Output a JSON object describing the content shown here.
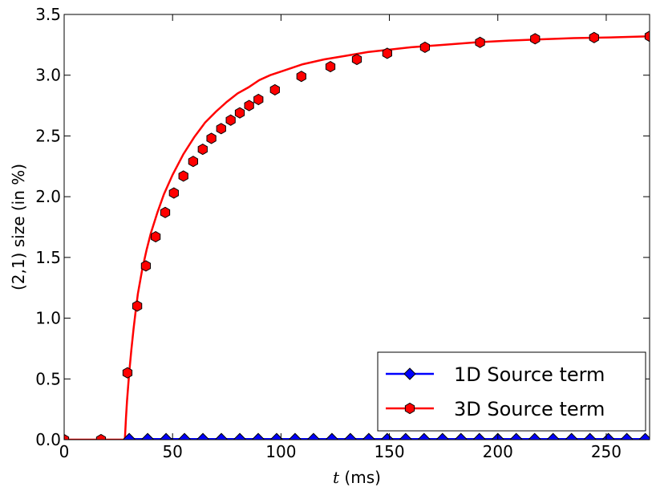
{
  "chart_data": {
    "type": "line",
    "title": "",
    "xlabel_var": "t",
    "xlabel_unit": " (ms)",
    "ylabel": "(2,1) size (in %)",
    "xlim": [
      0,
      270
    ],
    "ylim": [
      0.0,
      3.5
    ],
    "xticks": [
      0,
      50,
      100,
      150,
      200,
      250
    ],
    "xtick_labels": [
      "0",
      "50",
      "100",
      "150",
      "200",
      "250"
    ],
    "yticks": [
      0.0,
      0.5,
      1.0,
      1.5,
      2.0,
      2.5,
      3.0,
      3.5
    ],
    "ytick_labels": [
      "0.0",
      "0.5",
      "1.0",
      "1.5",
      "2.0",
      "2.5",
      "3.0",
      "3.5"
    ],
    "grid": false,
    "legend_position": "bottom-right",
    "series": [
      {
        "name": "1D Source term",
        "color": "#0000ff",
        "marker": "diamond",
        "x": [
          30,
          38.5,
          47,
          55.5,
          64,
          72.5,
          81,
          89.5,
          98,
          106.5,
          115,
          123.5,
          132,
          140.5,
          149,
          157.5,
          166,
          174.5,
          183,
          191.5,
          200,
          208.5,
          217,
          225.5,
          234,
          242.5,
          251,
          259.5,
          268
        ],
        "y": [
          0.005,
          0.005,
          0.005,
          0.005,
          0.005,
          0.005,
          0.005,
          0.005,
          0.005,
          0.005,
          0.005,
          0.005,
          0.005,
          0.005,
          0.005,
          0.005,
          0.005,
          0.005,
          0.005,
          0.005,
          0.005,
          0.005,
          0.005,
          0.005,
          0.005,
          0.005,
          0.005,
          0.005,
          0.005
        ]
      },
      {
        "name": "3D Source term",
        "color": "#ff0000",
        "marker": "hexagon",
        "line_x": [
          0,
          28,
          28.5,
          29,
          30,
          31,
          32,
          33,
          34,
          36,
          38,
          40,
          43,
          46,
          50,
          55,
          60,
          65,
          70,
          75,
          80,
          85,
          90,
          95,
          100,
          110,
          120,
          130,
          140,
          150,
          160,
          175,
          190,
          205,
          220,
          235,
          250,
          270
        ],
        "line_y": [
          0,
          0,
          0.18,
          0.32,
          0.55,
          0.74,
          0.91,
          1.06,
          1.2,
          1.4,
          1.56,
          1.7,
          1.87,
          2.02,
          2.18,
          2.35,
          2.49,
          2.61,
          2.7,
          2.78,
          2.85,
          2.9,
          2.96,
          3.0,
          3.03,
          3.09,
          3.13,
          3.16,
          3.19,
          3.21,
          3.23,
          3.25,
          3.27,
          3.285,
          3.295,
          3.305,
          3.31,
          3.32
        ],
        "x": [
          0,
          17,
          29.2,
          33.7,
          37.7,
          42.2,
          46.6,
          50.6,
          55,
          59.5,
          63.9,
          67.9,
          72.4,
          76.8,
          81,
          85.3,
          89.6,
          97.2,
          109.4,
          122.8,
          135,
          149,
          166.4,
          191.8,
          217.2,
          244.4,
          270
        ],
        "y": [
          0.0,
          0.0,
          0.55,
          1.1,
          1.43,
          1.67,
          1.87,
          2.03,
          2.17,
          2.29,
          2.39,
          2.48,
          2.56,
          2.63,
          2.69,
          2.75,
          2.8,
          2.88,
          2.99,
          3.07,
          3.13,
          3.18,
          3.23,
          3.27,
          3.3,
          3.31,
          3.32
        ]
      }
    ]
  }
}
